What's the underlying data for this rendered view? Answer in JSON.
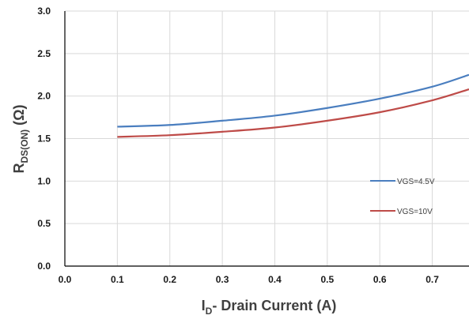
{
  "chart_data": {
    "type": "line",
    "title": "",
    "xlabel": {
      "main": "I",
      "sub": "D",
      "rest": "- Drain Current (A)"
    },
    "ylabel": {
      "main": "R",
      "sub": "DS(ON)",
      "rest": " (Ω)"
    },
    "xlim": [
      0.0,
      0.77
    ],
    "ylim": [
      0.0,
      3.0
    ],
    "x_ticks": [
      "0.0",
      "0.1",
      "0.2",
      "0.3",
      "0.4",
      "0.5",
      "0.6",
      "0.7"
    ],
    "y_ticks": [
      "0.0",
      "0.5",
      "1.0",
      "1.5",
      "2.0",
      "2.5",
      "3.0"
    ],
    "grid": true,
    "legend_position": "right-middle",
    "series": [
      {
        "name": "VGS=4.5V",
        "color": "#4a7ebf",
        "x": [
          0.1,
          0.2,
          0.3,
          0.4,
          0.5,
          0.6,
          0.7,
          0.77
        ],
        "y": [
          1.64,
          1.66,
          1.71,
          1.77,
          1.86,
          1.97,
          2.11,
          2.25
        ]
      },
      {
        "name": "VGS=10V",
        "color": "#be4b48",
        "x": [
          0.1,
          0.2,
          0.3,
          0.4,
          0.5,
          0.6,
          0.7,
          0.77
        ],
        "y": [
          1.52,
          1.54,
          1.58,
          1.63,
          1.71,
          1.81,
          1.95,
          2.08
        ]
      }
    ]
  }
}
